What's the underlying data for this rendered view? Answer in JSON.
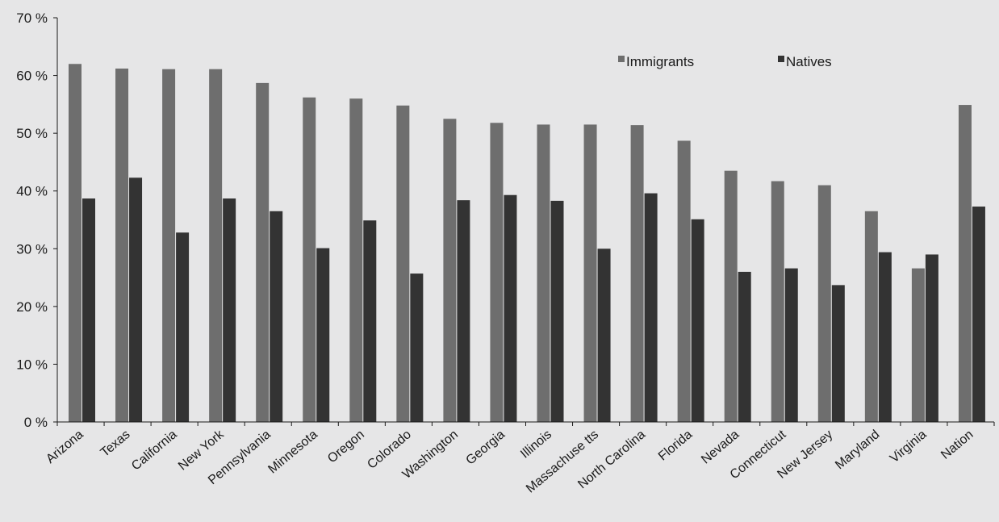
{
  "chart_data": {
    "type": "bar",
    "title": "",
    "xlabel": "",
    "ylabel": "",
    "ylim": [
      0,
      70
    ],
    "yticks": [
      0,
      10,
      20,
      30,
      40,
      50,
      60,
      70
    ],
    "ytick_labels": [
      "0 %",
      "10 %",
      "20 %",
      "30 %",
      "40 %",
      "50 %",
      "60 %",
      "70 %"
    ],
    "grid": false,
    "legend_position": "top-right",
    "categories": [
      "Arizona",
      "Texas",
      "California",
      "New York",
      "Pennsylvania",
      "Minnesota",
      "Oregon",
      "Colorado",
      "Washington",
      "Georgia",
      "Illinois",
      "Massachuse tts",
      "North Carolina",
      "Florida",
      "Nevada",
      "Connecticut",
      "New Jersey",
      "Maryland",
      "Virginia",
      "Nation"
    ],
    "series": [
      {
        "name": "Immigrants",
        "color": "#6e6e6e",
        "values": [
          62.0,
          61.2,
          61.1,
          61.1,
          58.7,
          56.2,
          56.0,
          54.8,
          52.5,
          51.8,
          51.5,
          51.5,
          51.4,
          48.7,
          43.5,
          41.7,
          41.0,
          36.5,
          26.6,
          54.9
        ]
      },
      {
        "name": "Natives",
        "color": "#333333",
        "values": [
          38.7,
          42.3,
          32.8,
          38.7,
          36.5,
          30.1,
          34.9,
          25.7,
          38.4,
          39.3,
          38.3,
          30.0,
          39.6,
          35.1,
          26.0,
          26.6,
          23.7,
          29.4,
          29.0,
          37.3
        ]
      }
    ]
  }
}
